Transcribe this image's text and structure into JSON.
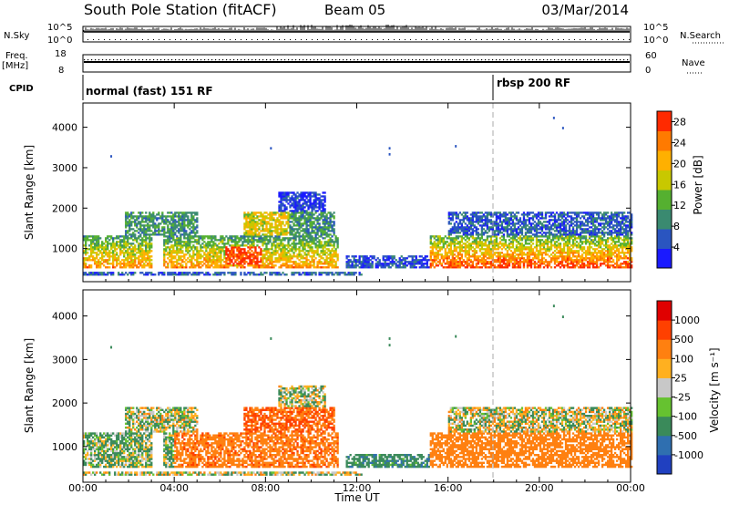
{
  "header": {
    "station": "South Pole Station (fitACF)",
    "beam": "Beam 05",
    "date": "03/Mar/2014"
  },
  "top_panels": {
    "nsky_label": "N.Sky",
    "nsky_axis": [
      "10^5",
      "10^0"
    ],
    "nsearch_label": "N.Search",
    "freq_label": "Freq.",
    "freq_unit": "[MHz]",
    "freq_axis": [
      "18",
      "8"
    ],
    "nave_axis": [
      "60",
      "0"
    ],
    "nave_label": "Nave",
    "cpid_label": "CPID",
    "cpid_modes": [
      {
        "label": "normal (fast) 151 RF",
        "start_hour": 0
      },
      {
        "label": "rbsp 200 RF",
        "start_hour": 18
      }
    ]
  },
  "chart_data": [
    {
      "type": "heatmap",
      "name": "power",
      "ylabel": "Slant Range [km]",
      "xlabel": "",
      "x_ticks": [
        "00:00",
        "04:00",
        "08:00",
        "12:00",
        "16:00",
        "20:00",
        "00:00"
      ],
      "x_tick_hours": [
        0,
        4,
        8,
        12,
        16,
        20,
        24
      ],
      "xlim_hours": [
        0,
        24
      ],
      "y_ticks": [
        1000,
        2000,
        3000,
        4000
      ],
      "ylim": [
        180,
        4600
      ],
      "colorbar": {
        "label": "Power [dB]",
        "ticks": [
          "4",
          "8",
          "12",
          "16",
          "20",
          "24",
          "28"
        ],
        "range": [
          0,
          30
        ],
        "colors": [
          "#1a1aff",
          "#2a55c0",
          "#3a8a70",
          "#55b030",
          "#c8c800",
          "#ffb000",
          "#ff7a00",
          "#ff2a00"
        ]
      }
    },
    {
      "type": "heatmap",
      "name": "velocity",
      "ylabel": "Slant Range [km]",
      "xlabel": "Time UT",
      "x_ticks": [
        "00:00",
        "04:00",
        "08:00",
        "12:00",
        "16:00",
        "20:00",
        "00:00"
      ],
      "x_tick_hours": [
        0,
        4,
        8,
        12,
        16,
        20,
        24
      ],
      "xlim_hours": [
        0,
        24
      ],
      "y_ticks": [
        1000,
        2000,
        3000,
        4000
      ],
      "ylim": [
        180,
        4600
      ],
      "colorbar": {
        "label": "Velocity [m s⁻¹]",
        "ticks": [
          "1000",
          "500",
          "100",
          "25",
          "-25",
          "-100",
          "-500",
          "-1000"
        ],
        "colors": [
          "#2040c0",
          "#2f6fb0",
          "#3a8a5a",
          "#66c230",
          "#c8c8c8",
          "#ffb020",
          "#ff8010",
          "#ff4000",
          "#e00000"
        ]
      }
    }
  ]
}
